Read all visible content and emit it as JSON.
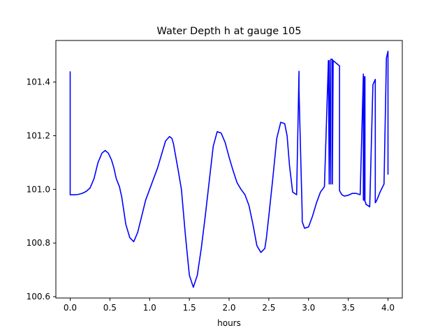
{
  "chart_data": {
    "type": "line",
    "title": "Water Depth h at gauge 105",
    "xlabel": "hours",
    "ylabel": "",
    "xlim": [
      -0.18,
      4.18
    ],
    "ylim": [
      100.595,
      101.555
    ],
    "xticks": [
      0.0,
      0.5,
      1.0,
      1.5,
      2.0,
      2.5,
      3.0,
      3.5,
      4.0
    ],
    "xtick_labels": [
      "0.0",
      "0.5",
      "1.0",
      "1.5",
      "2.0",
      "2.5",
      "3.0",
      "3.5",
      "4.0"
    ],
    "yticks": [
      100.6,
      100.8,
      101.0,
      101.2,
      101.4
    ],
    "ytick_labels": [
      "100.6",
      "100.8",
      "101.0",
      "101.2",
      "101.4"
    ],
    "grid": false,
    "legend": false,
    "series": [
      {
        "color": "#0000ff",
        "x": [
          0.0,
          0.0,
          0.05,
          0.1,
          0.15,
          0.2,
          0.25,
          0.3,
          0.35,
          0.4,
          0.44,
          0.48,
          0.52,
          0.55,
          0.58,
          0.62,
          0.65,
          0.7,
          0.75,
          0.8,
          0.85,
          0.9,
          0.95,
          1.0,
          1.05,
          1.1,
          1.15,
          1.2,
          1.25,
          1.28,
          1.3,
          1.33,
          1.36,
          1.4,
          1.45,
          1.5,
          1.55,
          1.6,
          1.65,
          1.7,
          1.75,
          1.8,
          1.85,
          1.9,
          1.95,
          2.0,
          2.05,
          2.1,
          2.15,
          2.2,
          2.25,
          2.3,
          2.35,
          2.4,
          2.45,
          2.47,
          2.5,
          2.55,
          2.6,
          2.65,
          2.7,
          2.73,
          2.76,
          2.8,
          2.85,
          2.88,
          2.88,
          2.92,
          2.92,
          2.95,
          3.0,
          3.05,
          3.1,
          3.15,
          3.2,
          3.25,
          3.26,
          3.26,
          3.28,
          3.28,
          3.3,
          3.3,
          3.31,
          3.31,
          3.35,
          3.39,
          3.39,
          3.42,
          3.45,
          3.5,
          3.55,
          3.6,
          3.65,
          3.69,
          3.69,
          3.7,
          3.7,
          3.71,
          3.71,
          3.72,
          3.72,
          3.77,
          3.77,
          3.81,
          3.81,
          3.84,
          3.84,
          3.86,
          3.9,
          3.95,
          3.98,
          3.98,
          4.0,
          4.0
        ],
        "values": [
          101.44,
          100.98,
          100.98,
          100.981,
          100.985,
          100.992,
          101.005,
          101.04,
          101.1,
          101.135,
          101.145,
          101.135,
          101.11,
          101.08,
          101.04,
          101.01,
          100.97,
          100.87,
          100.82,
          100.805,
          100.84,
          100.9,
          100.96,
          101.0,
          101.04,
          101.08,
          101.13,
          101.18,
          101.197,
          101.19,
          101.17,
          101.12,
          101.07,
          101.0,
          100.83,
          100.68,
          100.635,
          100.68,
          100.78,
          100.9,
          101.03,
          101.16,
          101.215,
          101.21,
          101.175,
          101.12,
          101.07,
          101.025,
          101.0,
          100.98,
          100.94,
          100.87,
          100.79,
          100.765,
          100.78,
          100.82,
          100.9,
          101.04,
          101.19,
          101.25,
          101.245,
          101.2,
          101.09,
          100.99,
          100.98,
          101.44,
          101.37,
          100.91,
          100.88,
          100.855,
          100.86,
          100.9,
          100.95,
          100.99,
          101.01,
          101.48,
          101.02,
          101.48,
          101.02,
          101.485,
          101.485,
          101.02,
          101.48,
          101.48,
          101.47,
          101.46,
          100.995,
          100.98,
          100.975,
          100.978,
          100.985,
          100.985,
          100.98,
          101.43,
          100.96,
          101.42,
          100.96,
          101.42,
          100.955,
          100.95,
          100.945,
          100.935,
          100.935,
          101.39,
          101.39,
          101.41,
          100.95,
          100.96,
          100.99,
          101.02,
          101.49,
          101.49,
          101.515,
          101.055
        ]
      }
    ]
  }
}
